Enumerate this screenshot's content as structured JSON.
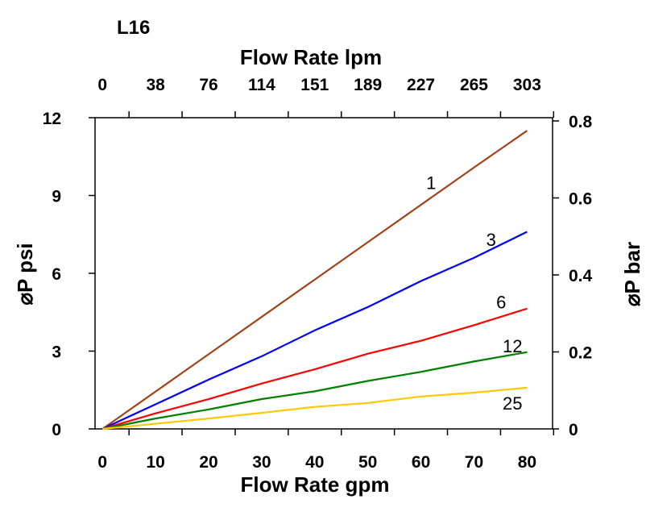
{
  "chart_data": {
    "type": "line",
    "title": "L16",
    "xlabel": "Flow Rate gpm",
    "x2label": "Flow Rate lpm",
    "ylabel": "⌀P psi",
    "y2label": "⌀P bar",
    "xlim": [
      -1.4,
      84.8
    ],
    "ylim": [
      0,
      12
    ],
    "y2lim": [
      0,
      0.8
    ],
    "xticks": [
      0,
      10,
      20,
      30,
      40,
      50,
      60,
      70,
      80
    ],
    "x2ticks": [
      "0",
      "38",
      "76",
      "114",
      "151",
      "189",
      "227",
      "265",
      "303"
    ],
    "yticks": [
      0,
      3,
      6,
      9,
      12
    ],
    "y2ticks": [
      "0",
      "0.2",
      "0.4",
      "0.6",
      "0.8"
    ],
    "grid": false,
    "x": [
      0,
      10,
      20,
      30,
      40,
      50,
      60,
      70,
      80
    ],
    "series": [
      {
        "name": "1",
        "color": "#a0441c",
        "values": [
          0,
          1.44,
          2.88,
          4.32,
          5.76,
          7.2,
          8.64,
          10.08,
          11.5
        ],
        "label_at": [
          61,
          9.5
        ]
      },
      {
        "name": "3",
        "color": "#0000ff",
        "values": [
          0,
          0.95,
          1.9,
          2.8,
          3.8,
          4.7,
          5.7,
          6.6,
          7.6
        ],
        "label_at": [
          72.3,
          7.3
        ]
      },
      {
        "name": "6",
        "color": "#ff0000",
        "values": [
          0,
          0.6,
          1.15,
          1.75,
          2.3,
          2.9,
          3.4,
          4.0,
          4.64
        ],
        "label_at": [
          74.2,
          4.9
        ]
      },
      {
        "name": "12",
        "color": "#008000",
        "values": [
          0,
          0.4,
          0.75,
          1.15,
          1.45,
          1.85,
          2.2,
          2.6,
          2.96
        ],
        "label_at": [
          75.4,
          3.2
        ]
      },
      {
        "name": "25",
        "color": "#ffc800",
        "values": [
          0,
          0.2,
          0.4,
          0.62,
          0.85,
          1.0,
          1.25,
          1.4,
          1.59
        ],
        "label_at": [
          75.4,
          1.0
        ]
      }
    ]
  }
}
